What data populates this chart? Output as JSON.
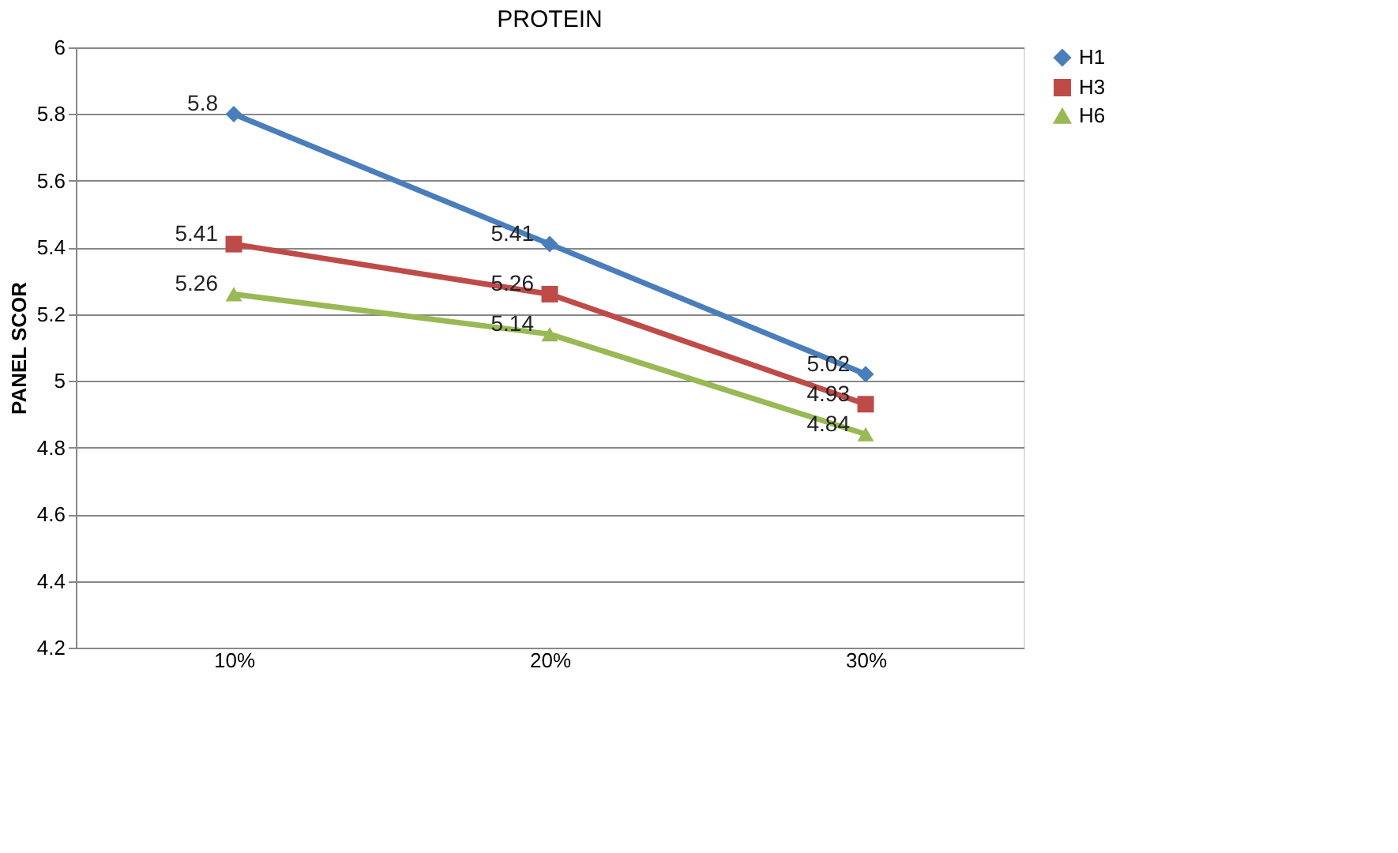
{
  "chart_data": {
    "type": "line",
    "title": "PROTEIN",
    "ylabel": "PANEL SCOR",
    "categories": [
      "10%",
      "20%",
      "30%"
    ],
    "series": [
      {
        "name": "H1",
        "color": "#4a7ebb",
        "marker": "diamond",
        "values": [
          5.8,
          5.41,
          5.02
        ]
      },
      {
        "name": "H3",
        "color": "#be4b48",
        "marker": "square",
        "values": [
          5.41,
          5.26,
          4.93
        ]
      },
      {
        "name": "H6",
        "color": "#98b954",
        "marker": "triangle",
        "values": [
          5.26,
          5.14,
          4.84
        ]
      }
    ],
    "ylim": [
      4.2,
      6
    ],
    "yticks": [
      4.2,
      4.4,
      4.6,
      4.8,
      5,
      5.2,
      5.4,
      5.6,
      5.8,
      6
    ],
    "grid": "y",
    "legend": "right",
    "data_labels": true,
    "line_style": "solid"
  }
}
